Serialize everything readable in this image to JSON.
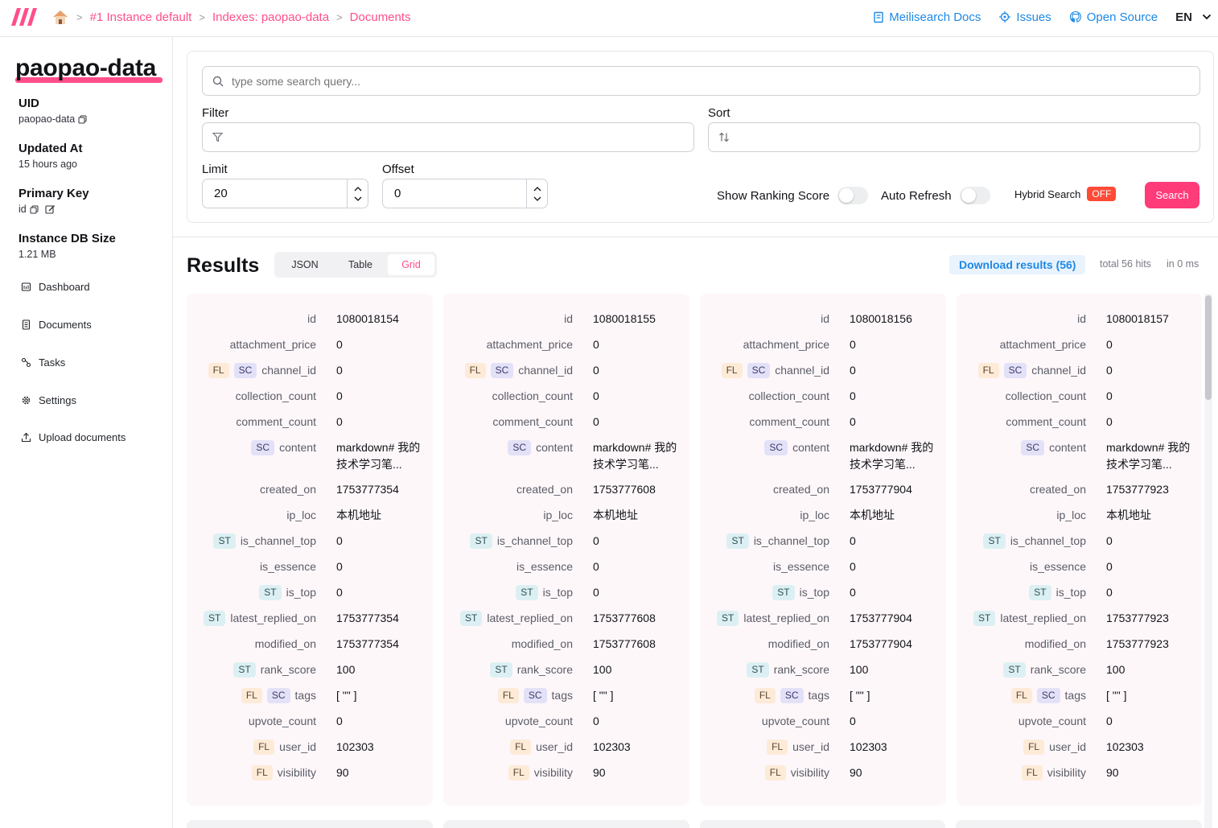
{
  "breadcrumb": {
    "instance": "#1 Instance default",
    "index": "Indexes: paopao-data",
    "page": "Documents"
  },
  "toplinks": {
    "docs": "Meilisearch Docs",
    "issues": "Issues",
    "opensource": "Open Source",
    "lang": "EN"
  },
  "sidebar": {
    "index_name": "paopao-data",
    "uid_label": "UID",
    "uid_value": "paopao-data",
    "updated_label": "Updated At",
    "updated_value": "15 hours ago",
    "pk_label": "Primary Key",
    "pk_value": "id",
    "dbsize_label": "Instance DB Size",
    "dbsize_value": "1.21 MB",
    "nav": [
      "Dashboard",
      "Documents",
      "Tasks",
      "Settings",
      "Upload documents"
    ]
  },
  "search": {
    "placeholder": "type some search query...",
    "filter_label": "Filter",
    "sort_label": "Sort",
    "limit_label": "Limit",
    "limit_value": "20",
    "offset_label": "Offset",
    "offset_value": "0",
    "show_ranking_label": "Show Ranking Score",
    "auto_refresh_label": "Auto Refresh",
    "hybrid_label": "Hybrid Search",
    "hybrid_state": "OFF",
    "search_button": "Search"
  },
  "results": {
    "title": "Results",
    "tabs": [
      "JSON",
      "Table",
      "Grid"
    ],
    "active_tab": "Grid",
    "download_label": "Download results (56)",
    "total_hits": "total 56 hits",
    "time": "in 0 ms"
  },
  "fields": [
    {
      "key": "id",
      "badges": []
    },
    {
      "key": "attachment_price",
      "badges": []
    },
    {
      "key": "channel_id",
      "badges": [
        "FL",
        "SC"
      ]
    },
    {
      "key": "collection_count",
      "badges": []
    },
    {
      "key": "comment_count",
      "badges": []
    },
    {
      "key": "content",
      "badges": [
        "SC"
      ]
    },
    {
      "key": "created_on",
      "badges": []
    },
    {
      "key": "ip_loc",
      "badges": []
    },
    {
      "key": "is_channel_top",
      "badges": [
        "ST"
      ]
    },
    {
      "key": "is_essence",
      "badges": []
    },
    {
      "key": "is_top",
      "badges": [
        "ST"
      ]
    },
    {
      "key": "latest_replied_on",
      "badges": [
        "ST"
      ]
    },
    {
      "key": "modified_on",
      "badges": []
    },
    {
      "key": "rank_score",
      "badges": [
        "ST"
      ]
    },
    {
      "key": "tags",
      "badges": [
        "FL",
        "SC"
      ]
    },
    {
      "key": "upvote_count",
      "badges": []
    },
    {
      "key": "user_id",
      "badges": [
        "FL"
      ]
    },
    {
      "key": "visibility",
      "badges": [
        "FL"
      ]
    }
  ],
  "documents": [
    {
      "id": "1080018154",
      "attachment_price": "0",
      "channel_id": "0",
      "collection_count": "0",
      "comment_count": "0",
      "content": "markdown# 我的技术学习笔...",
      "created_on": "1753777354",
      "ip_loc": "本机地址",
      "is_channel_top": "0",
      "is_essence": "0",
      "is_top": "0",
      "latest_replied_on": "1753777354",
      "modified_on": "1753777354",
      "rank_score": "100",
      "tags": "[ \"\" ]",
      "upvote_count": "0",
      "user_id": "102303",
      "visibility": "90"
    },
    {
      "id": "1080018155",
      "attachment_price": "0",
      "channel_id": "0",
      "collection_count": "0",
      "comment_count": "0",
      "content": "markdown# 我的技术学习笔...",
      "created_on": "1753777608",
      "ip_loc": "本机地址",
      "is_channel_top": "0",
      "is_essence": "0",
      "is_top": "0",
      "latest_replied_on": "1753777608",
      "modified_on": "1753777608",
      "rank_score": "100",
      "tags": "[ \"\" ]",
      "upvote_count": "0",
      "user_id": "102303",
      "visibility": "90"
    },
    {
      "id": "1080018156",
      "attachment_price": "0",
      "channel_id": "0",
      "collection_count": "0",
      "comment_count": "0",
      "content": "markdown# 我的技术学习笔...",
      "created_on": "1753777904",
      "ip_loc": "本机地址",
      "is_channel_top": "0",
      "is_essence": "0",
      "is_top": "0",
      "latest_replied_on": "1753777904",
      "modified_on": "1753777904",
      "rank_score": "100",
      "tags": "[ \"\" ]",
      "upvote_count": "0",
      "user_id": "102303",
      "visibility": "90"
    },
    {
      "id": "1080018157",
      "attachment_price": "0",
      "channel_id": "0",
      "collection_count": "0",
      "comment_count": "0",
      "content": "markdown# 我的技术学习笔...",
      "created_on": "1753777923",
      "ip_loc": "本机地址",
      "is_channel_top": "0",
      "is_essence": "0",
      "is_top": "0",
      "latest_replied_on": "1753777923",
      "modified_on": "1753777923",
      "rank_score": "100",
      "tags": "[ \"\" ]",
      "upvote_count": "0",
      "user_id": "102303",
      "visibility": "90"
    }
  ],
  "colors": {
    "accent": "#ff4f8b",
    "link": "#1e88e5",
    "search_button": "#ff3b7a",
    "off_badge": "#ff4a36"
  }
}
